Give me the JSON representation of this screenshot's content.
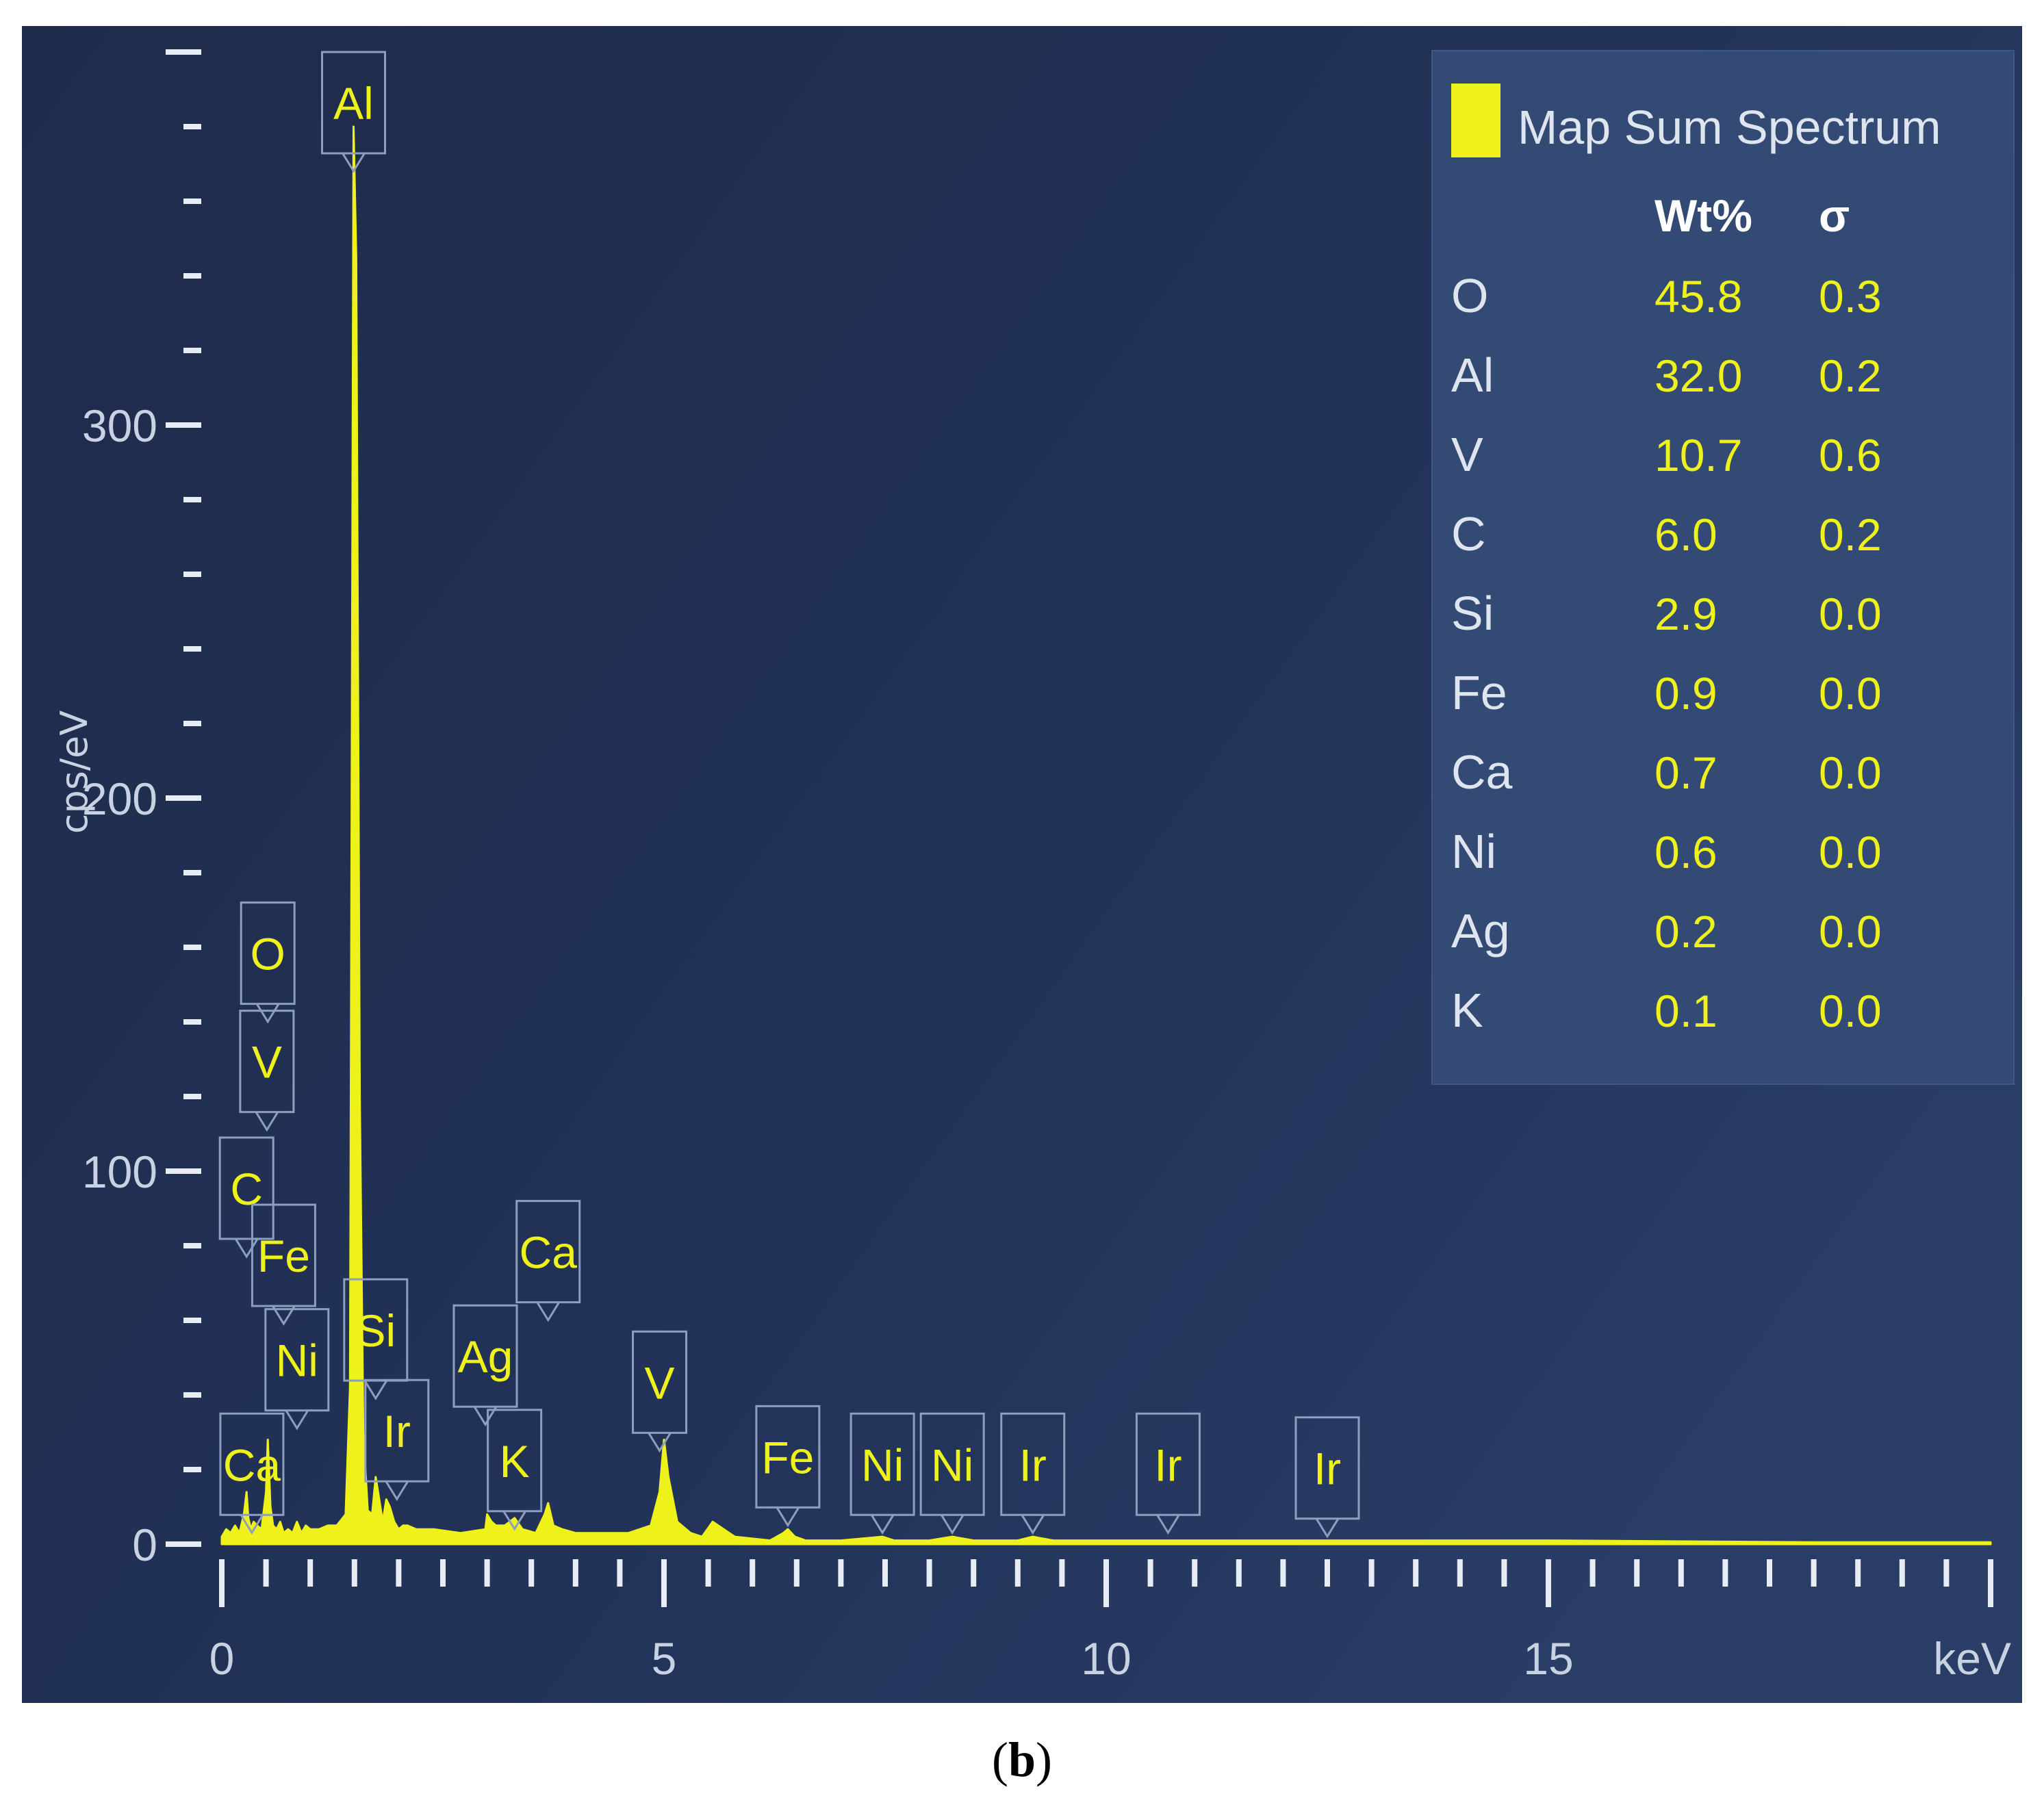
{
  "caption": {
    "open": "(",
    "letter": "b",
    "close": ")"
  },
  "colors": {
    "background": "#1f2c4d",
    "accent": "#eef21a",
    "legend_panel": "#334a74"
  },
  "chart_data": {
    "type": "line",
    "title": "",
    "xlabel": "keV",
    "ylabel": "cps/eV",
    "xlim": [
      0,
      20
    ],
    "ylim": [
      0,
      400
    ],
    "x_ticks": [
      0,
      5,
      10,
      15
    ],
    "y_ticks": [
      0,
      100,
      200,
      300
    ],
    "series": [
      {
        "name": "Map Sum Spectrum",
        "color": "#eef21a",
        "x": [
          0.0,
          0.05,
          0.1,
          0.15,
          0.2,
          0.25,
          0.28,
          0.3,
          0.33,
          0.36,
          0.4,
          0.45,
          0.5,
          0.52,
          0.55,
          0.58,
          0.62,
          0.66,
          0.7,
          0.75,
          0.8,
          0.85,
          0.9,
          0.95,
          1.0,
          1.1,
          1.2,
          1.3,
          1.4,
          1.45,
          1.49,
          1.52,
          1.56,
          1.6,
          1.65,
          1.7,
          1.74,
          1.78,
          1.82,
          1.86,
          1.9,
          1.95,
          2.0,
          2.05,
          2.1,
          2.2,
          2.4,
          2.7,
          2.98,
          3.0,
          3.05,
          3.1,
          3.2,
          3.31,
          3.4,
          3.55,
          3.65,
          3.69,
          3.75,
          3.85,
          4.0,
          4.3,
          4.6,
          4.85,
          4.95,
          5.0,
          5.05,
          5.15,
          5.3,
          5.43,
          5.55,
          5.8,
          6.2,
          6.35,
          6.4,
          6.48,
          6.6,
          7.0,
          7.47,
          7.6,
          8.0,
          8.26,
          8.5,
          9.0,
          9.17,
          9.4,
          10.0,
          10.7,
          11.0,
          12.0,
          12.5,
          13.0,
          15.0,
          18.0,
          20.0
        ],
        "values": [
          2,
          4,
          3,
          5,
          3,
          8,
          14,
          7,
          4,
          6,
          5,
          4,
          14,
          28,
          10,
          5,
          4,
          6,
          3,
          4,
          3,
          6,
          3,
          5,
          4,
          4,
          5,
          5,
          8,
          42,
          380,
          345,
          120,
          30,
          9,
          8,
          18,
          12,
          6,
          12,
          10,
          6,
          4,
          5,
          5,
          4,
          4,
          3,
          4,
          8,
          6,
          5,
          5,
          7,
          4,
          3,
          8,
          11,
          5,
          4,
          3,
          3,
          3,
          5,
          14,
          28,
          18,
          6,
          3,
          2,
          6,
          2,
          1,
          3,
          4,
          2,
          1,
          1,
          2,
          1,
          1,
          2,
          1,
          1,
          2,
          1,
          1,
          1,
          1,
          1,
          1,
          1,
          1,
          0.5,
          0.5
        ]
      }
    ],
    "peak_labels": [
      {
        "text": "Al",
        "x": 1.49,
        "y_top": 400
      },
      {
        "text": "O",
        "x": 0.52,
        "y_top": 172
      },
      {
        "text": "V",
        "x": 0.51,
        "y_top": 143
      },
      {
        "text": "C",
        "x": 0.28,
        "y_top": 109
      },
      {
        "text": "Fe",
        "x": 0.7,
        "y_top": 91
      },
      {
        "text": "Ni",
        "x": 0.85,
        "y_top": 63
      },
      {
        "text": "Si",
        "x": 1.74,
        "y_top": 71
      },
      {
        "text": "Ca",
        "x": 3.69,
        "y_top": 92
      },
      {
        "text": "Ag",
        "x": 2.98,
        "y_top": 64
      },
      {
        "text": "V",
        "x": 4.95,
        "y_top": 57
      },
      {
        "text": "Ir",
        "x": 1.98,
        "y_top": 44
      },
      {
        "text": "K",
        "x": 3.31,
        "y_top": 36
      },
      {
        "text": "Ca",
        "x": 0.34,
        "y_top": 35
      },
      {
        "text": "Fe",
        "x": 6.4,
        "y_top": 37
      },
      {
        "text": "Ni",
        "x": 7.47,
        "y_top": 35
      },
      {
        "text": "Ni",
        "x": 8.26,
        "y_top": 35
      },
      {
        "text": "Ir",
        "x": 9.17,
        "y_top": 35
      },
      {
        "text": "Ir",
        "x": 10.7,
        "y_top": 35
      },
      {
        "text": "Ir",
        "x": 12.5,
        "y_top": 34
      }
    ],
    "legend": {
      "position": "top-right",
      "title": "Map Sum Spectrum",
      "headers": {
        "col1": "Wt%",
        "col2": "σ"
      },
      "rows": [
        {
          "element": "O",
          "wt": "45.8",
          "sigma": "0.3"
        },
        {
          "element": "Al",
          "wt": "32.0",
          "sigma": "0.2"
        },
        {
          "element": "V",
          "wt": "10.7",
          "sigma": "0.6"
        },
        {
          "element": "C",
          "wt": "6.0",
          "sigma": "0.2"
        },
        {
          "element": "Si",
          "wt": "2.9",
          "sigma": "0.0"
        },
        {
          "element": "Fe",
          "wt": "0.9",
          "sigma": "0.0"
        },
        {
          "element": "Ca",
          "wt": "0.7",
          "sigma": "0.0"
        },
        {
          "element": "Ni",
          "wt": "0.6",
          "sigma": "0.0"
        },
        {
          "element": "Ag",
          "wt": "0.2",
          "sigma": "0.0"
        },
        {
          "element": "K",
          "wt": "0.1",
          "sigma": "0.0"
        }
      ]
    }
  }
}
